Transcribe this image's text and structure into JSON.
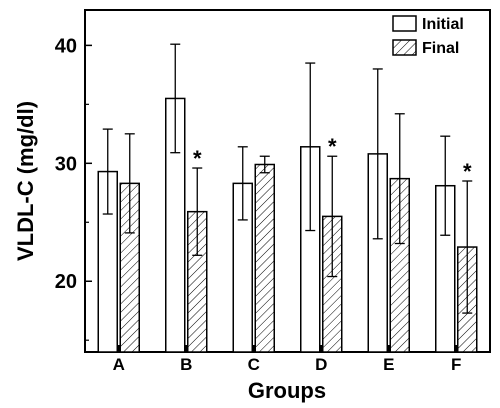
{
  "chart_data": {
    "type": "bar",
    "xlabel": "Groups",
    "ylabel": "VLDL-C (mg/dl)",
    "categories": [
      "A",
      "B",
      "C",
      "D",
      "E",
      "F"
    ],
    "ylim": [
      14,
      43
    ],
    "yticks": [
      20,
      30,
      40
    ],
    "series": [
      {
        "name": "Initial",
        "fill": "none",
        "values": [
          29.3,
          35.5,
          28.3,
          31.4,
          30.8,
          28.1
        ],
        "error": [
          3.6,
          4.6,
          3.1,
          7.1,
          7.2,
          4.2
        ]
      },
      {
        "name": "Final",
        "fill": "hatched",
        "values": [
          28.3,
          25.9,
          29.9,
          25.5,
          28.7,
          22.9
        ],
        "error": [
          4.2,
          3.7,
          0.7,
          5.1,
          5.5,
          5.6
        ]
      }
    ],
    "annotations": [
      {
        "category": "B",
        "series": "Final",
        "text": "*"
      },
      {
        "category": "D",
        "series": "Final",
        "text": "*"
      },
      {
        "category": "F",
        "series": "Final",
        "text": "*"
      }
    ],
    "legend_position": "top-right",
    "grid": false
  }
}
